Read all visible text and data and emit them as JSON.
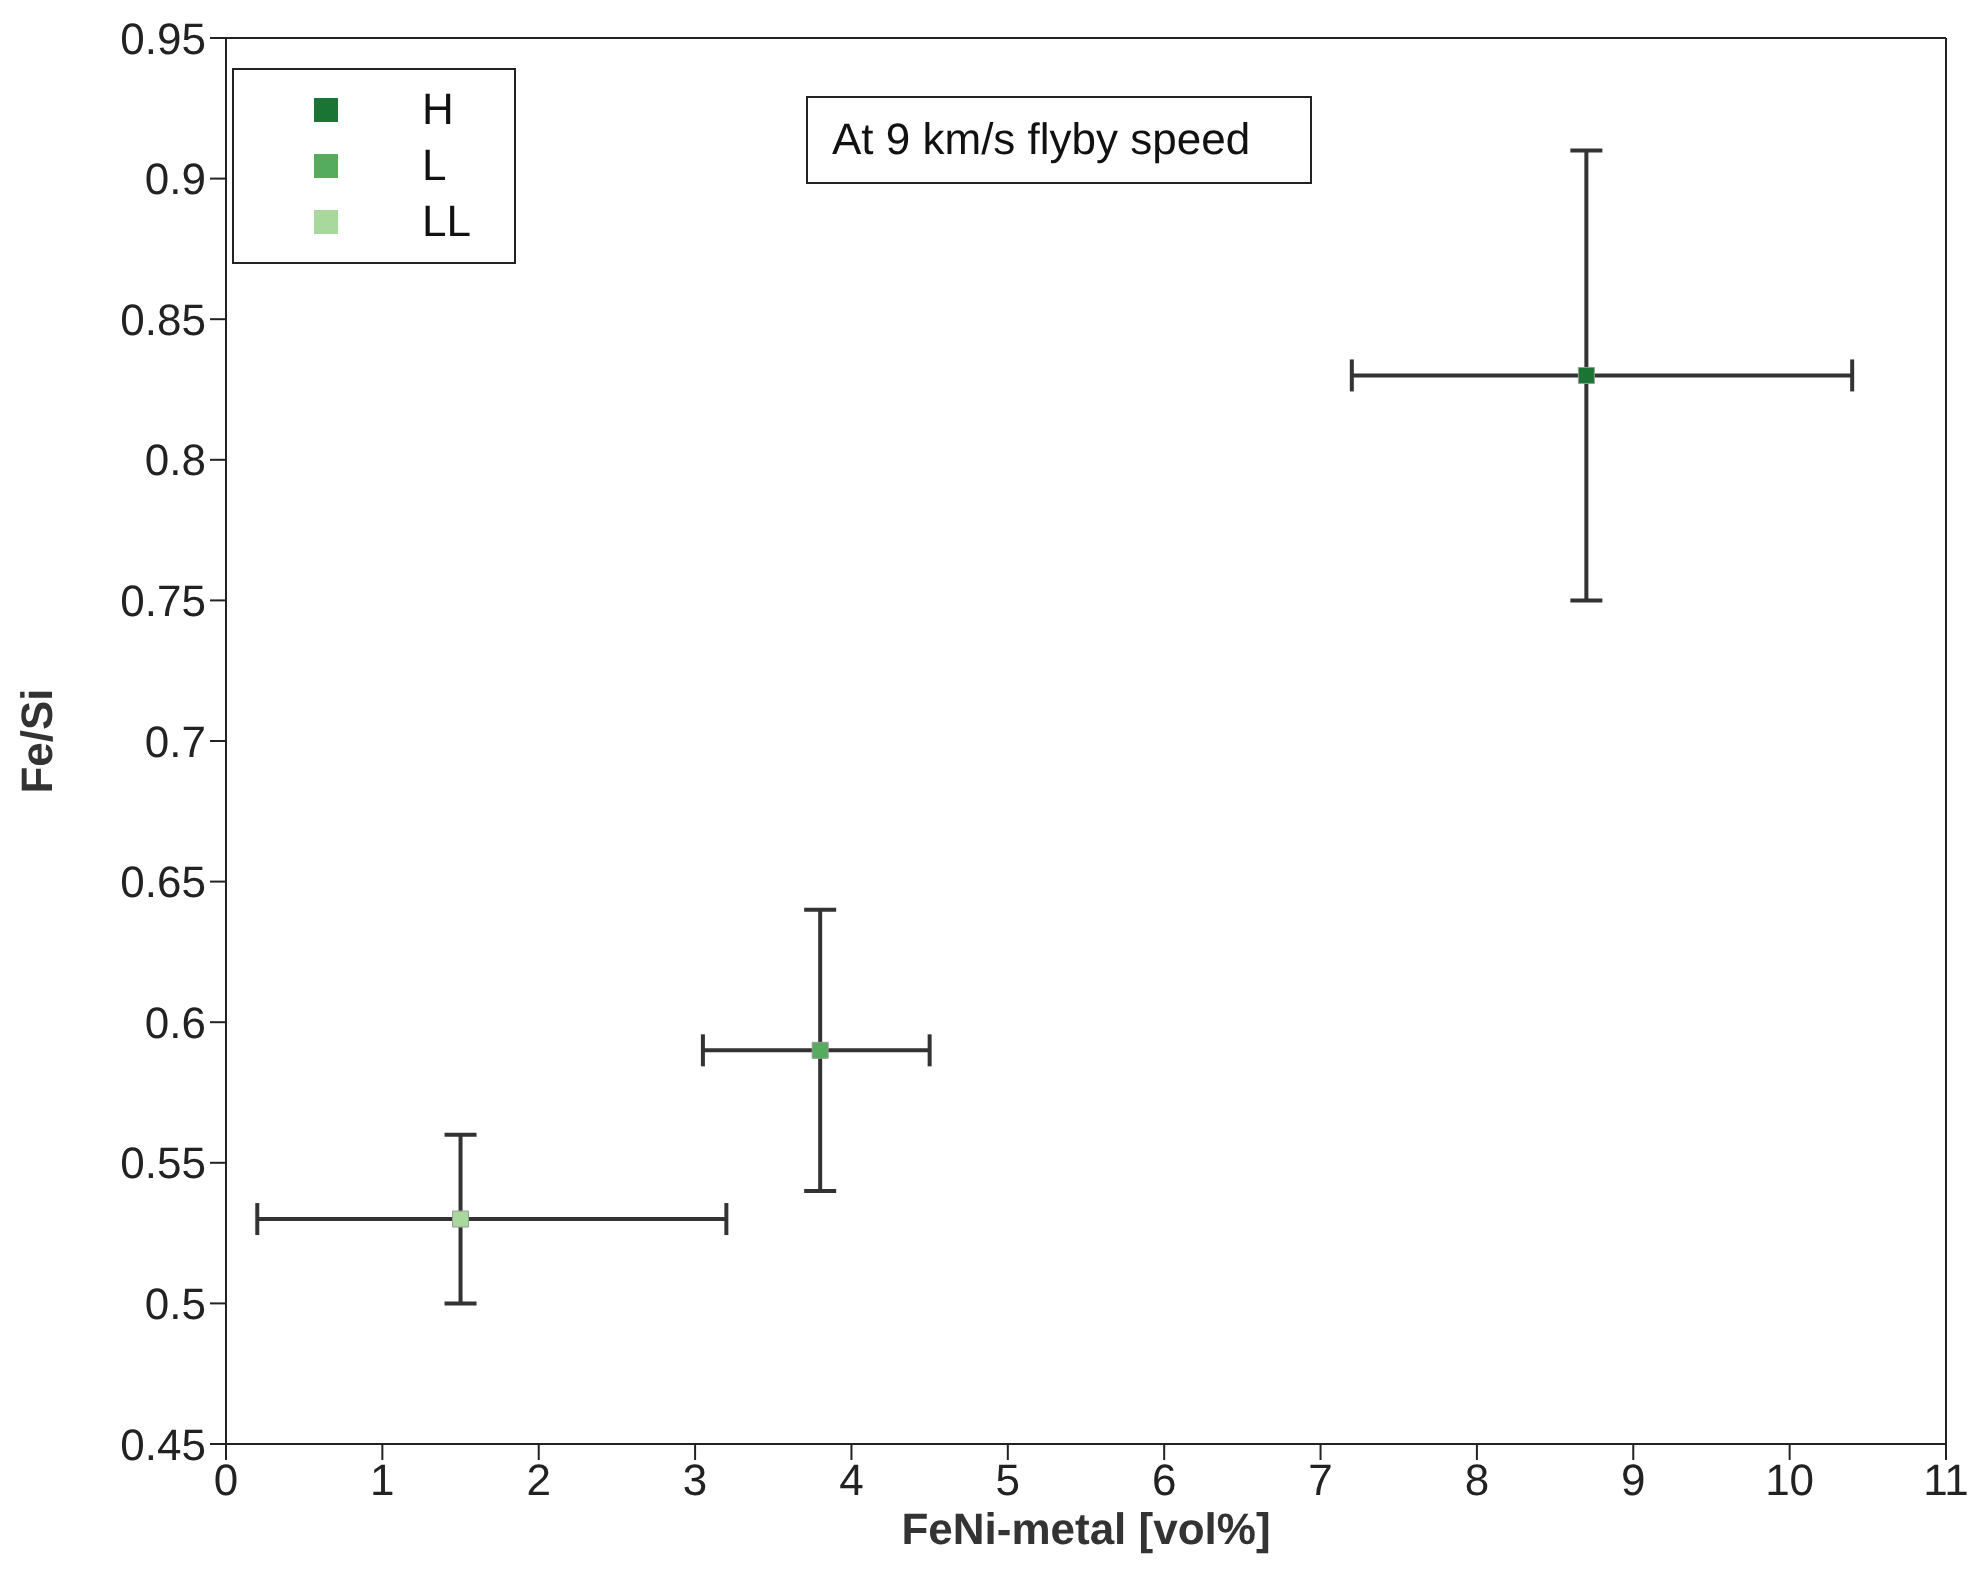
{
  "chart_data": {
    "type": "scatter",
    "xlabel": "FeNi-metal [vol%]",
    "ylabel": "Fe/Si",
    "annotations": [
      "At 9 km/s flyby speed"
    ],
    "xlim": [
      0,
      11
    ],
    "xticks": [
      0,
      1,
      2,
      3,
      4,
      5,
      6,
      7,
      8,
      9,
      10,
      11
    ],
    "ylim": [
      0.45,
      0.95
    ],
    "yticks": [
      0.45,
      0.5,
      0.55,
      0.6,
      0.65,
      0.7,
      0.75,
      0.8,
      0.85,
      0.9,
      0.95
    ],
    "grid": false,
    "legend": "top left",
    "marker": "square",
    "series": [
      {
        "name": "H",
        "color": "#1a7535",
        "x": [
          8.7
        ],
        "values": [
          0.83
        ],
        "errors": [
          [
            0.75,
            0.91
          ]
        ],
        "xerrors": [
          [
            7.2,
            10.4
          ]
        ]
      },
      {
        "name": "L",
        "color": "#55ac5e",
        "x": [
          3.8
        ],
        "values": [
          0.59
        ],
        "errors": [
          [
            0.54,
            0.64
          ]
        ],
        "xerrors": [
          [
            3.05,
            4.5
          ]
        ]
      },
      {
        "name": "LL",
        "color": "#a9d89d",
        "x": [
          1.5
        ],
        "values": [
          0.53
        ],
        "errors": [
          [
            0.5,
            0.56
          ]
        ],
        "xerrors": [
          [
            0.2,
            3.2
          ]
        ]
      }
    ]
  }
}
